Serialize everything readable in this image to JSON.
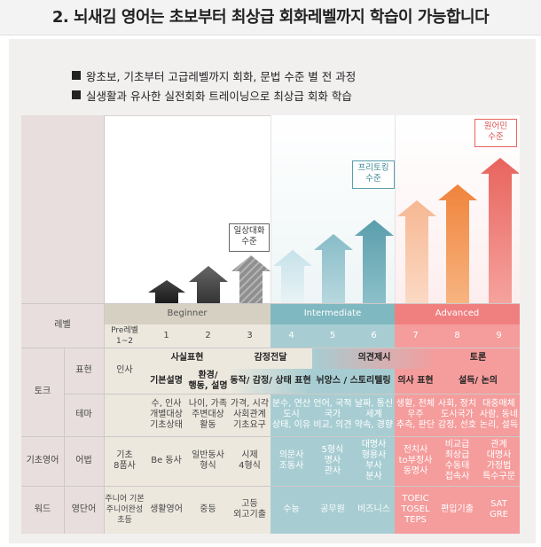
{
  "header": {
    "title": "2. 뇌새김 영어는 초보부터 최상급 회화레벨까지 학습이 가능합니다"
  },
  "bullets": [
    "왕초보, 기초부터 고급레벨까지 회화, 문법 수준 별 전 과정",
    "실생활과 유사한 실전회화 트레이닝으로 최상급 회화 학습"
  ],
  "chart_labels": {
    "daily": [
      "일상대화",
      "수준"
    ],
    "free": [
      "프리토킹",
      "수준"
    ],
    "native": [
      "원어민",
      "수준"
    ]
  },
  "colors": {
    "beginner_band": "#d6d0c2",
    "intermediate_band": "#7fb8c0",
    "advanced_band": "#f08080",
    "row_header": "#e8dede",
    "beginner_cells": "#ece8de",
    "intermediate_cells": "#a7cdd2",
    "advanced_cells": "#f59c9c"
  },
  "table": {
    "level_label": "레벨",
    "bands": {
      "beginner": "Beginner",
      "intermediate": "Intermediate",
      "advanced": "Advanced"
    },
    "levels": {
      "pre": "Pre레벨\n1~2",
      "l1": "1",
      "l2": "2",
      "l3": "3",
      "l4": "4",
      "l5": "5",
      "l6": "6",
      "l7": "7",
      "l8": "8",
      "l9": "9"
    },
    "talk_group": "토크",
    "expression_label": "표현",
    "theme_label": "테마",
    "greeting": "인사",
    "fact_expr": "사실표현",
    "emotion": "감정전달",
    "opinion": "의견제시",
    "debate": "토론",
    "basic_expr": "기본설명",
    "env_expr": "환경/\n행동, 설명",
    "action_emotion": "동작/ 감정/ 상태 표현",
    "nuance": "뉘앙스 / 스토리텔링",
    "opinion_expr": "의사 표현",
    "persuade": "설득/ 논의",
    "theme_2": "수, 인사\n개별대상\n기초상태",
    "theme_3": "나이, 가족\n주변대상\n활동",
    "theme_4": "가격, 시각\n사회관계\n기초요구",
    "theme_5": "분수, 연산\n도시\n상태, 이유",
    "theme_6": "언어, 국적\n국가\n비교, 의견",
    "theme_7": "날짜, 통신\n세계\n약속, 경향",
    "theme_8": "생활, 천체\n우주\n추측, 판단",
    "theme_9": "사회, 정치\n도시국가\n감정, 선호",
    "theme_10": "대중매체\n사람, 동네\n논리, 설득",
    "basic_eng": "기초영어",
    "grammar_label": "어법",
    "g1": "기초\n8품사",
    "g2": "Be 동사",
    "g3": "일반동사\n형식",
    "g4": "시제\n4형식",
    "g5": "의문사\n조동사",
    "g6": "5형식\n명사\n관사",
    "g7": "대명사\n형용사\n부사\n분사",
    "g8": "전치사\nto부정사\n동명사",
    "g9": "비교급\n최상급\n수동태\n접속사",
    "g10": "관계\n대명사\n가정법\n특수구문",
    "words": "워드",
    "vocab_label": "영단어",
    "w1": "주니어 기본\n주니어완성\n초등",
    "w2": "생활영어",
    "w3": "중등",
    "w4": "고등\n외고기출",
    "w5": "수능",
    "w6": "공무원",
    "w7": "비즈니스",
    "w8": "TOEIC\nTOSEL\nTEPS",
    "w9": "편입기출",
    "w10": "SAT\nGRE"
  }
}
